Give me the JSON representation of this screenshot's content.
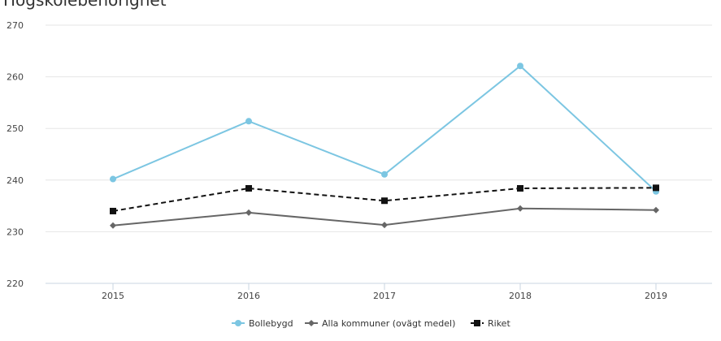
{
  "page": {
    "cut_title": "Högskolebehörighet"
  },
  "chart_data": {
    "type": "line",
    "categories": [
      "2015",
      "2016",
      "2017",
      "2018",
      "2019"
    ],
    "ylim": [
      220,
      270
    ],
    "yticks": [
      220,
      230,
      240,
      250,
      260,
      270
    ],
    "grid": true,
    "legend_position": "bottom",
    "series": [
      {
        "name": "Bollebygd",
        "color": "#7cc6e2",
        "marker": "circle",
        "dash": "solid",
        "values": [
          240.2,
          251.4,
          241.1,
          262.1,
          237.8
        ]
      },
      {
        "name": "Alla kommuner (ovägt medel)",
        "color": "#666666",
        "marker": "diamond",
        "dash": "solid",
        "values": [
          231.2,
          233.7,
          231.3,
          234.5,
          234.2
        ]
      },
      {
        "name": "Riket",
        "color": "#111111",
        "marker": "square",
        "dash": "dashed",
        "values": [
          234.0,
          238.4,
          236.0,
          238.4,
          238.5
        ]
      }
    ]
  }
}
